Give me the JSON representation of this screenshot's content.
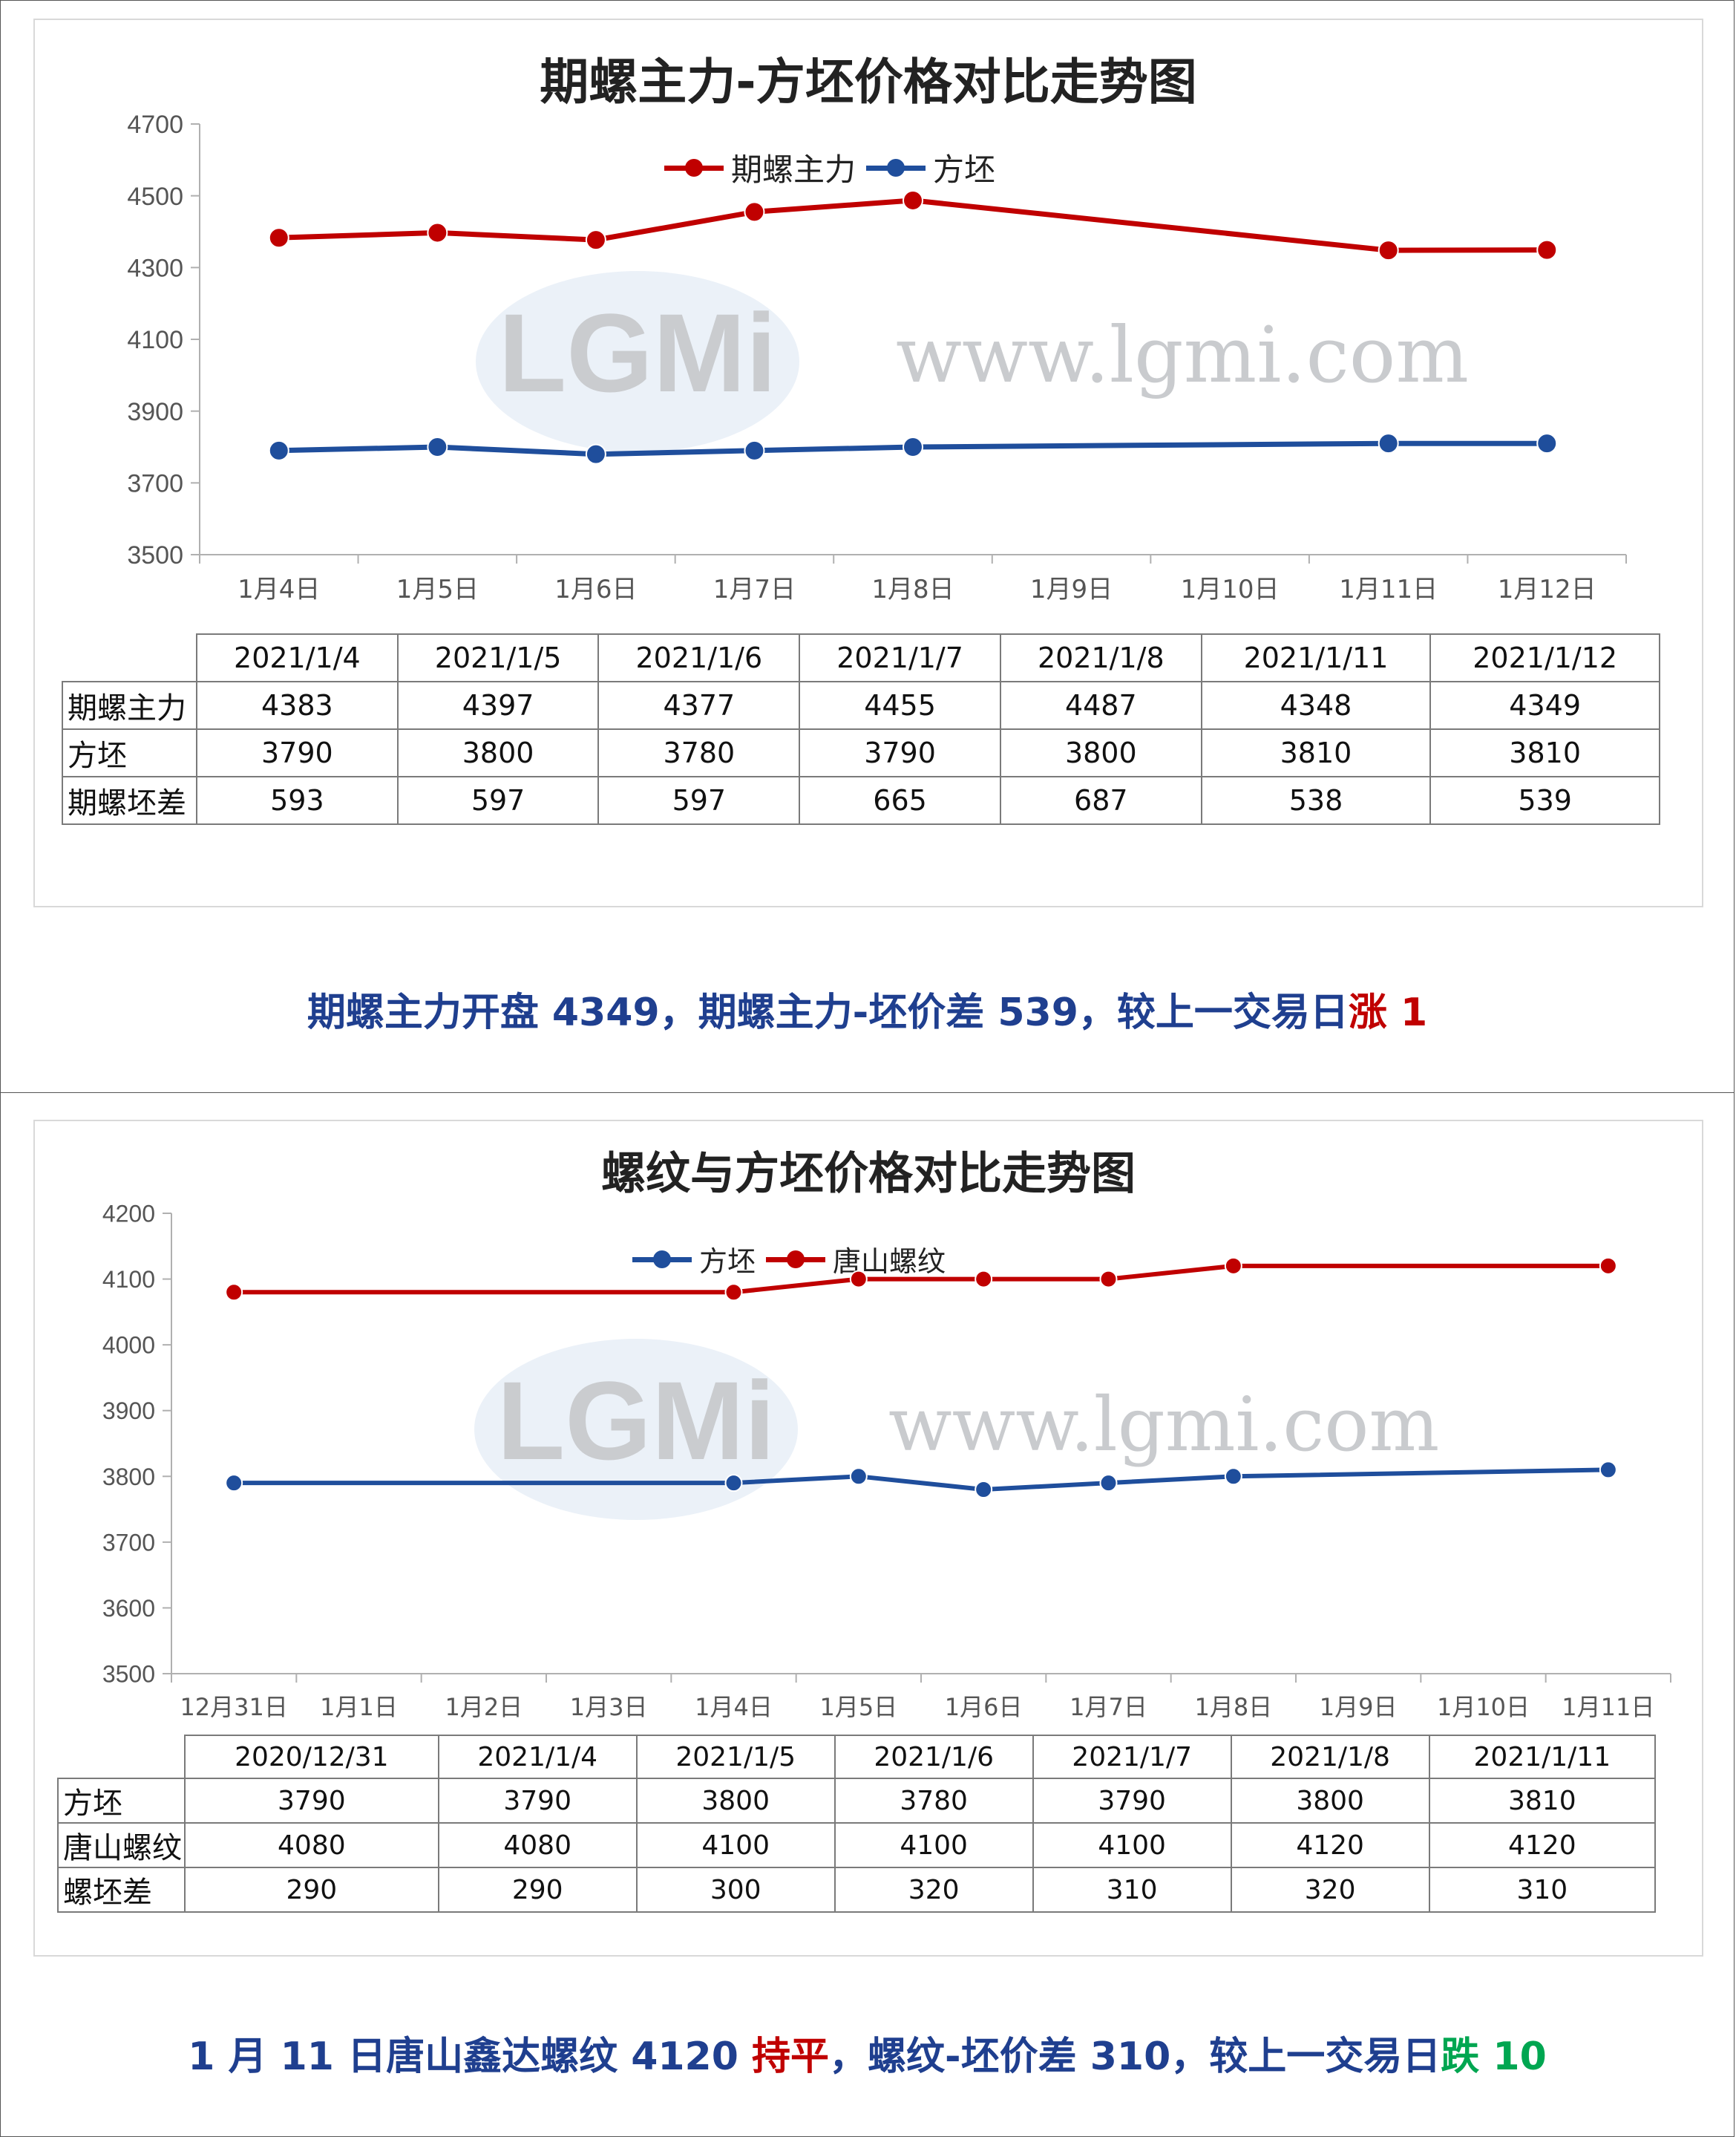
{
  "colors": {
    "red_series": "#c00000",
    "blue_series": "#1f4e9c",
    "axis": "#b0b0b0",
    "watermark": "#c9cbce",
    "summary_text": "#1f3f8f",
    "rise": "#c00000",
    "fall": "#00a651"
  },
  "panel1": {
    "title": "期螺主力-方坯价格对比走势图",
    "legend": [
      "期螺主力",
      "方坯"
    ],
    "watermark_url": "www.lgmi.com",
    "table": {
      "columns": [
        "2021/1/4",
        "2021/1/5",
        "2021/1/6",
        "2021/1/7",
        "2021/1/8",
        "2021/1/11",
        "2021/1/12"
      ],
      "rows": [
        {
          "label": "期螺主力",
          "values": [
            "4383",
            "4397",
            "4377",
            "4455",
            "4487",
            "4348",
            "4349"
          ]
        },
        {
          "label": "方坯",
          "values": [
            "3790",
            "3800",
            "3780",
            "3790",
            "3800",
            "3810",
            "3810"
          ]
        },
        {
          "label": "期螺坯差",
          "values": [
            "593",
            "597",
            "597",
            "665",
            "687",
            "538",
            "539"
          ]
        }
      ]
    },
    "summary": {
      "main": "期螺主力开盘 4349，期螺主力-坯价差 539，较上一交易日",
      "change": "涨 1"
    }
  },
  "panel2": {
    "title": "螺纹与方坯价格对比走势图",
    "legend": [
      "方坯",
      "唐山螺纹"
    ],
    "watermark_url": "www.lgmi.com",
    "table": {
      "columns": [
        "2020/12/31",
        "2021/1/4",
        "2021/1/5",
        "2021/1/6",
        "2021/1/7",
        "2021/1/8",
        "2021/1/11"
      ],
      "rows": [
        {
          "label": "方坯",
          "values": [
            "3790",
            "3790",
            "3800",
            "3780",
            "3790",
            "3800",
            "3810"
          ]
        },
        {
          "label": "唐山螺纹",
          "values": [
            "4080",
            "4080",
            "4100",
            "4100",
            "4100",
            "4120",
            "4120"
          ]
        },
        {
          "label": "螺坯差",
          "values": [
            "290",
            "290",
            "300",
            "320",
            "310",
            "320",
            "310"
          ]
        }
      ]
    },
    "summary": {
      "part1": "1 月 11 日唐山鑫达螺纹 4120 ",
      "flat": "持平",
      "part2": "，螺纹-坯价差 310，较上一交易日",
      "change": "跌 10"
    }
  },
  "chart_data": [
    {
      "type": "line",
      "title": "期螺主力-方坯价格对比走势图",
      "categories": [
        "1月4日",
        "1月5日",
        "1月6日",
        "1月7日",
        "1月8日",
        "1月9日",
        "1月10日",
        "1月11日",
        "1月12日"
      ],
      "ylim": [
        3500,
        4700
      ],
      "yticks": [
        3500,
        3700,
        3900,
        4100,
        4300,
        4500,
        4700
      ],
      "legend_position": "top",
      "series": [
        {
          "name": "期螺主力",
          "color": "#c00000",
          "values": [
            4383,
            4397,
            4377,
            4455,
            4487,
            null,
            null,
            4348,
            4349
          ]
        },
        {
          "name": "方坯",
          "color": "#1f4e9c",
          "values": [
            3790,
            3800,
            3780,
            3790,
            3800,
            null,
            null,
            3810,
            3810
          ]
        }
      ]
    },
    {
      "type": "line",
      "title": "螺纹与方坯价格对比走势图",
      "categories": [
        "12月31日",
        "1月1日",
        "1月2日",
        "1月3日",
        "1月4日",
        "1月5日",
        "1月6日",
        "1月7日",
        "1月8日",
        "1月9日",
        "1月10日",
        "1月11日"
      ],
      "ylim": [
        3500,
        4200
      ],
      "yticks": [
        3500,
        3600,
        3700,
        3800,
        3900,
        4000,
        4100,
        4200
      ],
      "legend_position": "top",
      "series": [
        {
          "name": "方坯",
          "color": "#1f4e9c",
          "values": [
            3790,
            null,
            null,
            null,
            3790,
            3800,
            3780,
            3790,
            3800,
            null,
            null,
            3810
          ]
        },
        {
          "name": "唐山螺纹",
          "color": "#c00000",
          "values": [
            4080,
            null,
            null,
            null,
            4080,
            4100,
            4100,
            4100,
            4120,
            null,
            null,
            4120
          ]
        }
      ]
    }
  ]
}
